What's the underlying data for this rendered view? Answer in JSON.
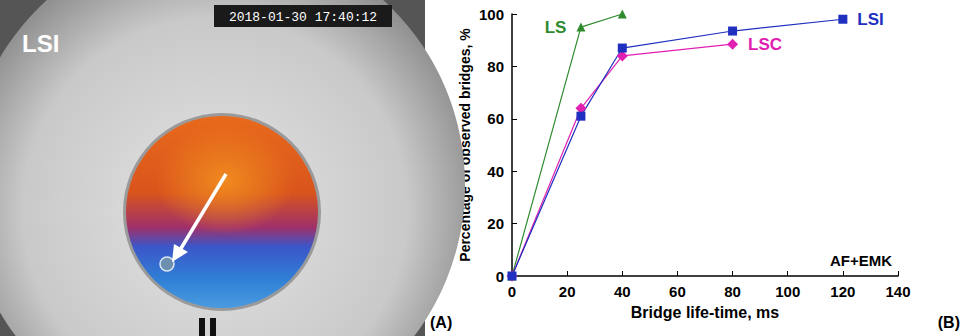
{
  "chart_data": {
    "type": "line",
    "panel": "(B)",
    "x_label": "Bridge life-time, ms",
    "y_label": "Percentage of observed bridges, %",
    "annotation": "AF+EMK",
    "xlim": [
      0,
      140
    ],
    "xticks": [
      0,
      20,
      40,
      60,
      80,
      100,
      120,
      140
    ],
    "ylim": [
      0,
      100
    ],
    "yticks": [
      0,
      20,
      40,
      60,
      80,
      100
    ],
    "grid": false,
    "series": [
      {
        "name": "LS",
        "color": "#2e8b2e",
        "marker": "triangle",
        "x": [
          0,
          25,
          40
        ],
        "values": [
          0,
          95,
          100
        ]
      },
      {
        "name": "LSC",
        "color": "#e020b0",
        "marker": "diamond",
        "x": [
          0,
          25,
          40,
          80
        ],
        "values": [
          0,
          64,
          84,
          88.5
        ]
      },
      {
        "name": "LSI",
        "color": "#1f2fbf",
        "marker": "square",
        "x": [
          0,
          25,
          40,
          80,
          120
        ],
        "values": [
          0,
          61,
          87,
          93.5,
          98
        ]
      }
    ]
  },
  "photo": {
    "panel": "(A)",
    "label": "LSI",
    "timestamp": "2018-01-30 17:40:12"
  }
}
